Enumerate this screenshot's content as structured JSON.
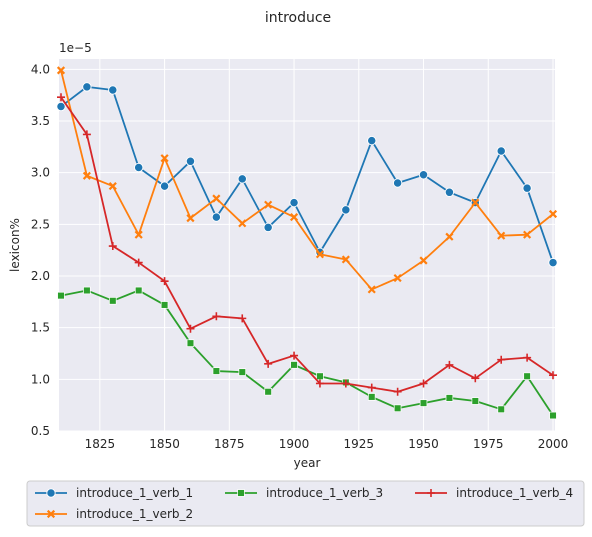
{
  "chart_data": {
    "type": "line",
    "title": "introduce",
    "xlabel": "year",
    "ylabel": "lexicon%",
    "y_scale_label": "1e−5",
    "xlim": [
      1810,
      2000
    ],
    "ylim": [
      0.5,
      4.1
    ],
    "x_ticks": [
      1825,
      1850,
      1875,
      1900,
      1925,
      1950,
      1975,
      2000
    ],
    "y_ticks": [
      0.5,
      1.0,
      1.5,
      2.0,
      2.5,
      3.0,
      3.5,
      4.0
    ],
    "grid": true,
    "legend_position": "bottom",
    "x": [
      1810,
      1820,
      1830,
      1840,
      1850,
      1860,
      1870,
      1880,
      1890,
      1900,
      1910,
      1920,
      1930,
      1940,
      1950,
      1960,
      1970,
      1980,
      1990,
      2000
    ],
    "series": [
      {
        "name": "introduce_1_verb_1",
        "color": "#1f77b4",
        "marker": "circle",
        "values": [
          3.64,
          3.83,
          3.8,
          3.05,
          2.87,
          3.11,
          2.57,
          2.94,
          2.47,
          2.71,
          2.23,
          2.64,
          3.31,
          2.9,
          2.98,
          2.81,
          2.71,
          3.21,
          2.85,
          2.13
        ]
      },
      {
        "name": "introduce_1_verb_2",
        "color": "#ff7f0e",
        "marker": "x",
        "values": [
          3.99,
          2.97,
          2.87,
          2.4,
          3.14,
          2.56,
          2.75,
          2.51,
          2.69,
          2.57,
          2.21,
          2.16,
          1.87,
          1.98,
          2.15,
          2.38,
          2.71,
          2.39,
          2.4,
          2.6
        ]
      },
      {
        "name": "introduce_1_verb_3",
        "color": "#2ca02c",
        "marker": "square",
        "values": [
          1.81,
          1.86,
          1.76,
          1.86,
          1.72,
          1.35,
          1.08,
          1.07,
          0.88,
          1.14,
          1.03,
          0.97,
          0.83,
          0.72,
          0.77,
          0.82,
          0.79,
          0.71,
          1.03,
          0.65
        ]
      },
      {
        "name": "introduce_1_verb_4",
        "color": "#d62728",
        "marker": "plus",
        "values": [
          3.73,
          3.37,
          2.29,
          2.13,
          1.95,
          1.49,
          1.61,
          1.59,
          1.15,
          1.23,
          0.96,
          0.96,
          0.92,
          0.88,
          0.96,
          1.14,
          1.01,
          1.19,
          1.21,
          1.04
        ]
      }
    ]
  }
}
